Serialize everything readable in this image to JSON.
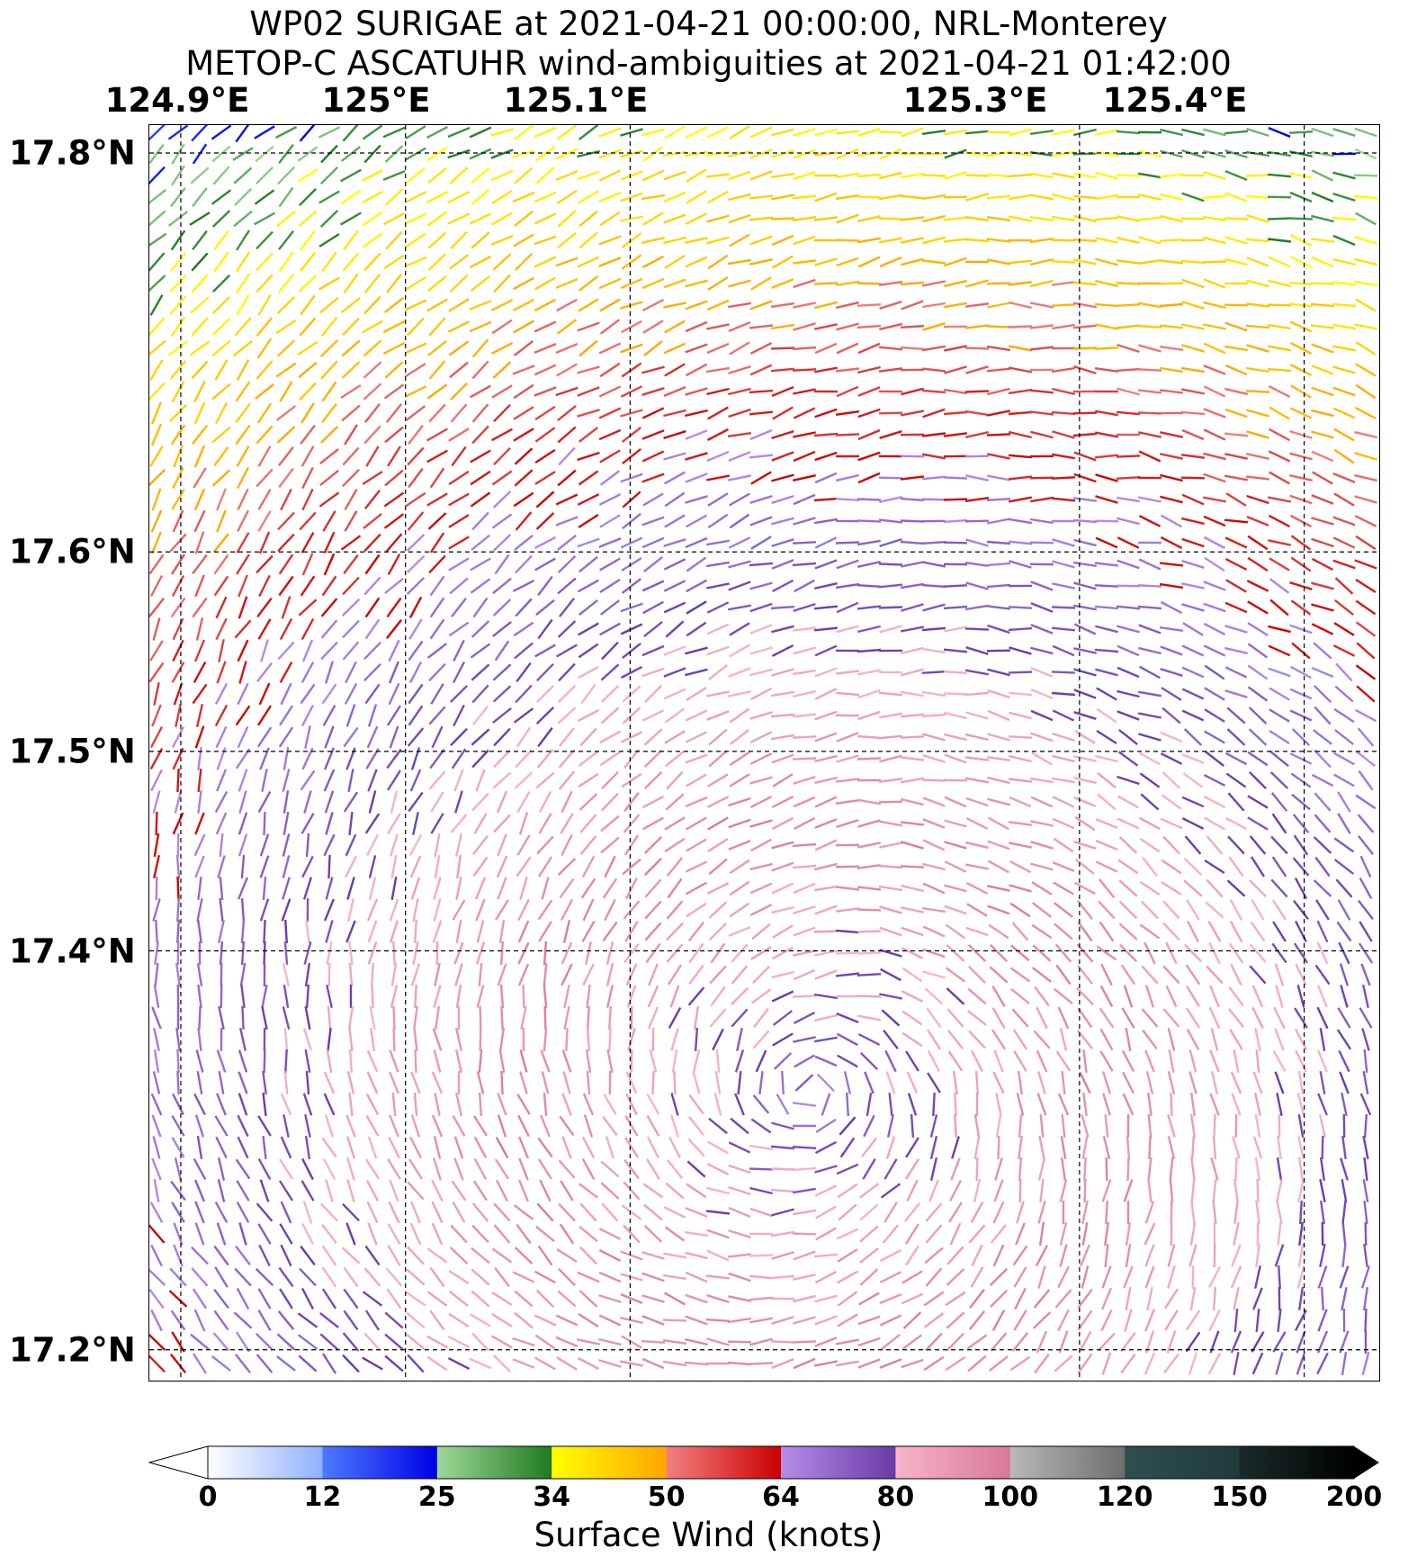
{
  "title_line1": "WP02 SURIGAE at 2021-04-21 00:00:00, NRL-Monterey",
  "title_line2": "METOP-C ASCATUHR wind-ambiguities at 2021-04-21 01:42:00",
  "map": {
    "lon_range": [
      124.886,
      125.433
    ],
    "lat_range": [
      17.185,
      17.814
    ],
    "lon_labels": [
      "124.9°E",
      "125°E",
      "125.1°E",
      "125.3°E",
      "125.4°E"
    ],
    "lon_values": [
      124.9,
      125.0,
      125.1,
      125.3,
      125.4
    ],
    "lat_labels": [
      "17.8°N",
      "17.6°N",
      "17.5°N",
      "17.4°N",
      "17.2°N"
    ],
    "lat_values": [
      17.8,
      17.6,
      17.5,
      17.4,
      17.2
    ],
    "gridlines": "dashed"
  },
  "storm_center": {
    "lon": 125.18,
    "lat": 17.33
  },
  "wind_ring_radius_deg": 0.14,
  "colorbar": {
    "label": "Surface Wind (knots)",
    "ticks": [
      "0",
      "12",
      "25",
      "34",
      "50",
      "64",
      "80",
      "100",
      "120",
      "150",
      "200"
    ],
    "bands": [
      {
        "from": 0,
        "to": 12,
        "colors": [
          "#ffffff",
          "#8fb0ff"
        ]
      },
      {
        "from": 12,
        "to": 25,
        "colors": [
          "#4d7bff",
          "#0000e6"
        ]
      },
      {
        "from": 25,
        "to": 34,
        "colors": [
          "#9ed89a",
          "#1f7a1f"
        ]
      },
      {
        "from": 34,
        "to": 50,
        "colors": [
          "#ffff00",
          "#ffa500"
        ]
      },
      {
        "from": 50,
        "to": 64,
        "colors": [
          "#f08080",
          "#cc0000"
        ]
      },
      {
        "from": 64,
        "to": 80,
        "colors": [
          "#b68ce8",
          "#6a3aa8"
        ]
      },
      {
        "from": 80,
        "to": 100,
        "colors": [
          "#f8b4c8",
          "#d8789a"
        ]
      },
      {
        "from": 100,
        "to": 120,
        "colors": [
          "#b8b8b8",
          "#6e6e6e"
        ]
      },
      {
        "from": 120,
        "to": 150,
        "colors": [
          "#2f4f4f",
          "#1f3a3a"
        ]
      },
      {
        "from": 150,
        "to": 200,
        "colors": [
          "#1a2b2b",
          "#000000"
        ]
      }
    ]
  }
}
